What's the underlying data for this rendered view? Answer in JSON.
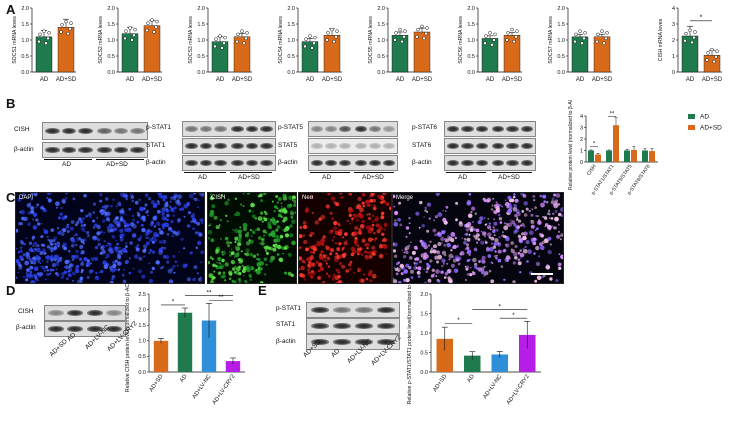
{
  "colors": {
    "ad": "#1f7a4d",
    "adsd": "#d96a19",
    "lvnc": "#2f8fd8",
    "lvcry2": "#b61ee8"
  },
  "panel_letters": [
    "A",
    "B",
    "C",
    "D",
    "E"
  ],
  "panelA": {
    "x_categories": [
      "AD",
      "AD+SD"
    ],
    "sig_star": "*",
    "charts": [
      {
        "ylabel": "SOCS1 mRNA leves",
        "yticks": [
          "0.0",
          "0.5",
          "1.0",
          "1.5",
          "2.0"
        ]
      },
      {
        "ylabel": "SOCS2 mRNA leves",
        "yticks": [
          "0.0",
          "0.5",
          "1.0",
          "1.5",
          "2.0"
        ]
      },
      {
        "ylabel": "SOCS3 mRNA leves",
        "yticks": [
          "0.0",
          "0.5",
          "1.0",
          "1.5",
          "2.0"
        ]
      },
      {
        "ylabel": "SOCS4 mRNA leves",
        "yticks": [
          "0.0",
          "0.5",
          "1.0",
          "1.5",
          "2.0"
        ]
      },
      {
        "ylabel": "SOCS5 mRNA leves",
        "yticks": [
          "0.0",
          "0.5",
          "1.0",
          "1.5",
          "2.0"
        ]
      },
      {
        "ylabel": "SOCS6 mRNA leves",
        "yticks": [
          "0.0",
          "0.5",
          "1.0",
          "1.5",
          "2.0"
        ]
      },
      {
        "ylabel": "SOCS7 mRNA leves",
        "yticks": [
          "0.0",
          "0.5",
          "1.0",
          "1.5",
          "2.0"
        ]
      },
      {
        "ylabel": "CISH mRNA leves",
        "yticks": [
          "0",
          "1",
          "2",
          "3",
          "4"
        ]
      }
    ]
  },
  "panelB": {
    "blot1": {
      "rows": [
        "CISH",
        "β-actin"
      ],
      "groups": [
        "AD",
        "AD+SD"
      ]
    },
    "blot2": {
      "rows": [
        "p-STAT1",
        "STAT1",
        "β-actin"
      ],
      "groups": [
        "AD",
        "AD+SD"
      ]
    },
    "blot3": {
      "rows": [
        "p-STAT5",
        "STAT5",
        "β-actin"
      ],
      "groups": [
        "AD",
        "AD+SD"
      ]
    },
    "blot4": {
      "rows": [
        "p-STAT6",
        "STAT6",
        "β-actin"
      ],
      "groups": [
        "AD",
        "AD+SD"
      ]
    },
    "chart": {
      "ylabel": "Relative protein level (normalized to β-ACTIN)",
      "yticks": [
        "0",
        "1",
        "2",
        "3",
        "4"
      ],
      "categories": [
        "CISH",
        "p-STAT1/STAT1",
        "p-STAT5/STAT5",
        "p-STAT6/STAT6"
      ],
      "legend": [
        "AD",
        "AD+SD"
      ],
      "sig1": "*",
      "sig2": "**"
    }
  },
  "panelC": {
    "titles": [
      "DAPI",
      "CISH",
      "Neu",
      "Merge"
    ]
  },
  "panelD": {
    "blot": {
      "rows": [
        "CISH",
        "β-actin"
      ],
      "lanes": [
        "AD+SD",
        "AD",
        "AD+LV-NC",
        "AD+LV-CRY2"
      ]
    },
    "chart": {
      "ylabel": "Relative CISH protein level(normalized to β-ACTIN)",
      "yticks": [
        "0.0",
        "0.5",
        "1.0",
        "1.5",
        "2.0",
        "2.5"
      ],
      "categories": [
        "AD+SD",
        "AD",
        "AD+LV-NC",
        "AD+LV-CRY2"
      ],
      "sig": [
        "*",
        "**",
        "**"
      ]
    }
  },
  "panelE": {
    "blot": {
      "rows": [
        "p-STAT1",
        "STAT1",
        "β-actin"
      ],
      "lanes": [
        "AD+SD",
        "AD",
        "AD+LV-NC",
        "AD+LV-CRY2"
      ]
    },
    "chart": {
      "ylabel": "Relative p-STAT1/STAT1 protein level(normalized to β-ACTIN)",
      "yticks": [
        "0.0",
        "0.5",
        "1.0",
        "1.5",
        "2.0"
      ],
      "categories": [
        "AD+SD",
        "AD",
        "AD+LV-NC",
        "AD+LV-CRY2"
      ],
      "sig": [
        "*",
        "*",
        "*"
      ]
    }
  },
  "chart_data": [
    {
      "type": "bar",
      "title": "",
      "ylabel": "SOCS1 mRNA leves",
      "categories": [
        "AD",
        "AD+SD"
      ],
      "values": [
        1.1,
        1.4
      ],
      "errors": [
        0.2,
        0.25
      ],
      "ylim": [
        0,
        2
      ]
    },
    {
      "type": "bar",
      "title": "",
      "ylabel": "SOCS2 mRNA leves",
      "categories": [
        "AD",
        "AD+SD"
      ],
      "values": [
        1.2,
        1.45
      ],
      "errors": [
        0.2,
        0.15
      ],
      "ylim": [
        0,
        2
      ]
    },
    {
      "type": "bar",
      "title": "",
      "ylabel": "SOCS3 mRNA leves",
      "categories": [
        "AD",
        "AD+SD"
      ],
      "values": [
        0.95,
        1.1
      ],
      "errors": [
        0.15,
        0.1
      ],
      "ylim": [
        0,
        2
      ]
    },
    {
      "type": "bar",
      "title": "",
      "ylabel": "SOCS4 mRNA leves",
      "categories": [
        "AD",
        "AD+SD"
      ],
      "values": [
        0.95,
        1.15
      ],
      "errors": [
        0.1,
        0.2
      ],
      "ylim": [
        0,
        2
      ]
    },
    {
      "type": "bar",
      "title": "",
      "ylabel": "SOCS5 mRNA leves",
      "categories": [
        "AD",
        "AD+SD"
      ],
      "values": [
        1.15,
        1.25
      ],
      "errors": [
        0.1,
        0.12
      ],
      "ylim": [
        0,
        2
      ]
    },
    {
      "type": "bar",
      "title": "",
      "ylabel": "SOCS6 mRNA leves",
      "categories": [
        "AD",
        "AD+SD"
      ],
      "values": [
        1.05,
        1.15
      ],
      "errors": [
        0.08,
        0.08
      ],
      "ylim": [
        0,
        2
      ]
    },
    {
      "type": "bar",
      "title": "",
      "ylabel": "SOCS7 mRNA leves",
      "categories": [
        "AD",
        "AD+SD"
      ],
      "values": [
        1.1,
        1.1
      ],
      "errors": [
        0.08,
        0.08
      ],
      "ylim": [
        0,
        2
      ]
    },
    {
      "type": "bar",
      "title": "",
      "ylabel": "CISH mRNA leves",
      "categories": [
        "AD",
        "AD+SD"
      ],
      "values": [
        2.25,
        1.05
      ],
      "errors": [
        0.6,
        0.3
      ],
      "ylim": [
        0,
        4
      ]
    },
    {
      "type": "bar",
      "title": "",
      "ylabel": "Relative protein level (normalized to β-ACTIN)",
      "categories": [
        "CISH",
        "p-STAT1/STAT1",
        "p-STAT5/STAT5",
        "p-STAT6/STAT6"
      ],
      "series": [
        {
          "name": "AD",
          "values": [
            1.0,
            1.0,
            1.0,
            1.0
          ],
          "errors": [
            0.05,
            0.05,
            0.1,
            0.15
          ]
        },
        {
          "name": "AD+SD",
          "values": [
            0.65,
            3.2,
            1.05,
            0.95
          ],
          "errors": [
            0.1,
            0.65,
            0.3,
            0.2
          ]
        }
      ],
      "ylim": [
        0,
        4
      ]
    },
    {
      "type": "bar",
      "title": "",
      "ylabel": "Relative CISH protein level(normalized to β-ACTIN)",
      "categories": [
        "AD+SD",
        "AD",
        "AD+LV-NC",
        "AD+LV-CRY2"
      ],
      "values": [
        1.0,
        1.9,
        1.65,
        0.35
      ],
      "errors": [
        0.08,
        0.15,
        0.55,
        0.1
      ],
      "ylim": [
        0,
        2.5
      ]
    },
    {
      "type": "bar",
      "title": "",
      "ylabel": "Relative p-STAT1/STAT1 protein level(normalized to β-ACTIN)",
      "categories": [
        "AD+SD",
        "AD",
        "AD+LV-NC",
        "AD+LV-CRY2"
      ],
      "values": [
        0.85,
        0.42,
        0.45,
        0.95
      ],
      "errors": [
        0.3,
        0.1,
        0.08,
        0.35
      ],
      "ylim": [
        0,
        2
      ]
    }
  ]
}
